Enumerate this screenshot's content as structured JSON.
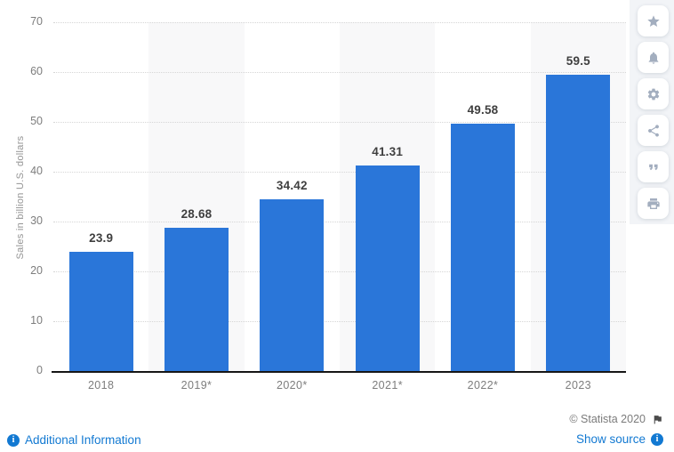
{
  "chart_data": {
    "type": "bar",
    "title": "",
    "xlabel": "",
    "ylabel": "Sales in billion U.S. dollars",
    "categories": [
      "2018",
      "2019*",
      "2020*",
      "2021*",
      "2022*",
      "2023"
    ],
    "values": [
      23.9,
      28.68,
      34.42,
      41.31,
      49.58,
      59.5
    ],
    "value_labels": [
      "23.9",
      "28.68",
      "34.42",
      "41.31",
      "49.58",
      "59.5"
    ],
    "ylim": [
      0,
      70
    ],
    "yticks": [
      0,
      10,
      20,
      30,
      40,
      50,
      60,
      70
    ],
    "grid": "horizontal-dotted",
    "legend": "none",
    "shaded_columns": [
      1,
      3,
      5
    ],
    "bar_color": "#2a76d9"
  },
  "toolbar": {
    "tools": [
      {
        "name": "favorite",
        "icon": "star-icon"
      },
      {
        "name": "notifications",
        "icon": "bell-icon"
      },
      {
        "name": "settings",
        "icon": "gear-icon"
      },
      {
        "name": "share",
        "icon": "share-icon"
      },
      {
        "name": "cite",
        "icon": "quote-icon"
      },
      {
        "name": "print",
        "icon": "print-icon"
      }
    ]
  },
  "footer": {
    "additional_information_label": "Additional Information",
    "copyright_label": "© Statista 2020",
    "show_source_label": "Show source"
  },
  "colors": {
    "bar": "#2a76d9",
    "band": "#f8f8f9",
    "grid_line": "#d6d6d6",
    "axis_line": "#161616",
    "axis_text": "#7d7d7d",
    "value_text": "#3f3f3f",
    "link_blue": "#1279d2",
    "copyright_text": "#7b7b7b",
    "sidebar_strip": "#f2f4f7",
    "sidebar_icon": "#a3aebf",
    "flag_icon": "#4a4a4a"
  }
}
